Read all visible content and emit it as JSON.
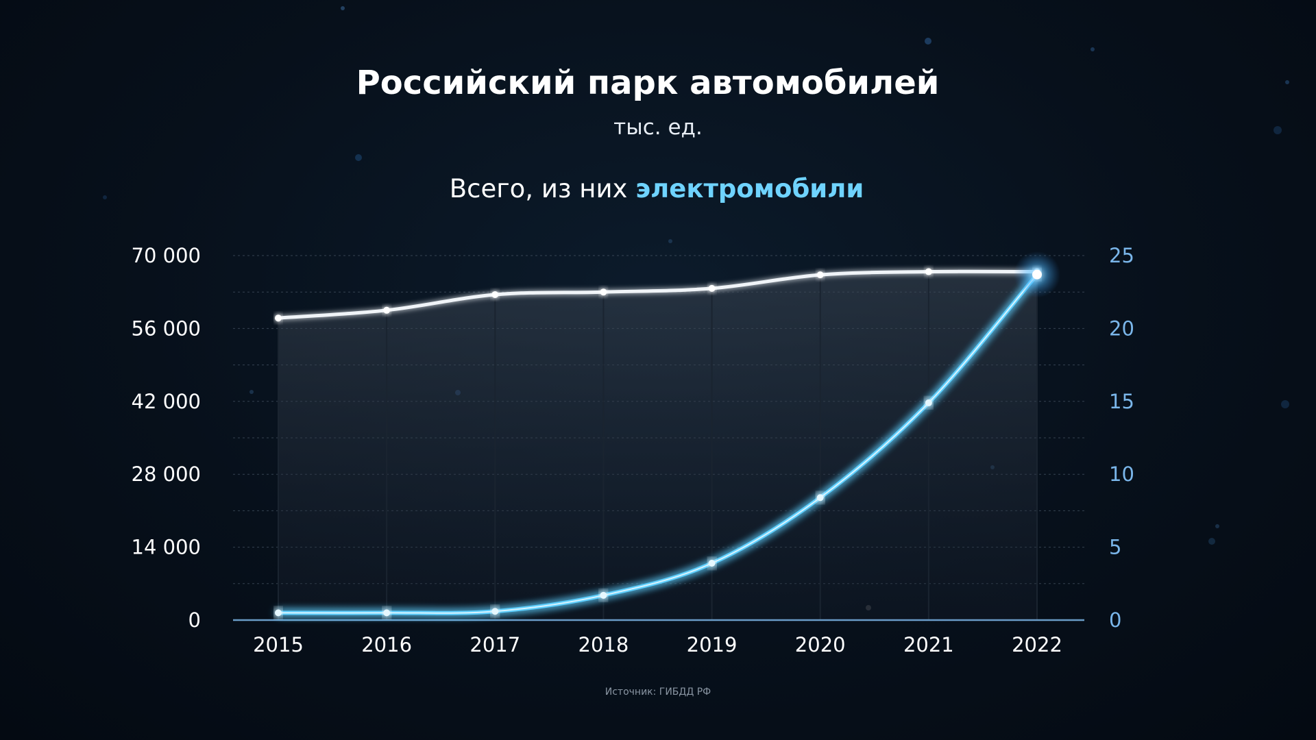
{
  "chart_data": {
    "type": "line",
    "title": "Российский парк автомобилей",
    "subtitle": "тыс. ед.",
    "legend": {
      "prefix": "Всего, из них ",
      "highlight": "электромобили"
    },
    "categories": [
      "2015",
      "2016",
      "2017",
      "2018",
      "2019",
      "2020",
      "2021",
      "2022"
    ],
    "left_axis": {
      "ylim": [
        0,
        70000
      ],
      "ticks": [
        "0",
        "14 000",
        "28 000",
        "42 000",
        "56 000",
        "70 000"
      ]
    },
    "right_axis": {
      "ylim": [
        0,
        25
      ],
      "ticks": [
        "0",
        "5",
        "10",
        "15",
        "20",
        "25"
      ]
    },
    "series": [
      {
        "axis": "left",
        "color": "#f0f4f8",
        "values": [
          58000,
          59500,
          62500,
          63000,
          63700,
          66300,
          66900,
          66900
        ]
      },
      {
        "axis": "right",
        "color": "#5fd0ff",
        "values": [
          0.5,
          0.5,
          0.6,
          1.7,
          3.9,
          8.4,
          14.9,
          23.7
        ]
      }
    ],
    "grid": true,
    "source": "Источник: ГИБДД РФ"
  }
}
